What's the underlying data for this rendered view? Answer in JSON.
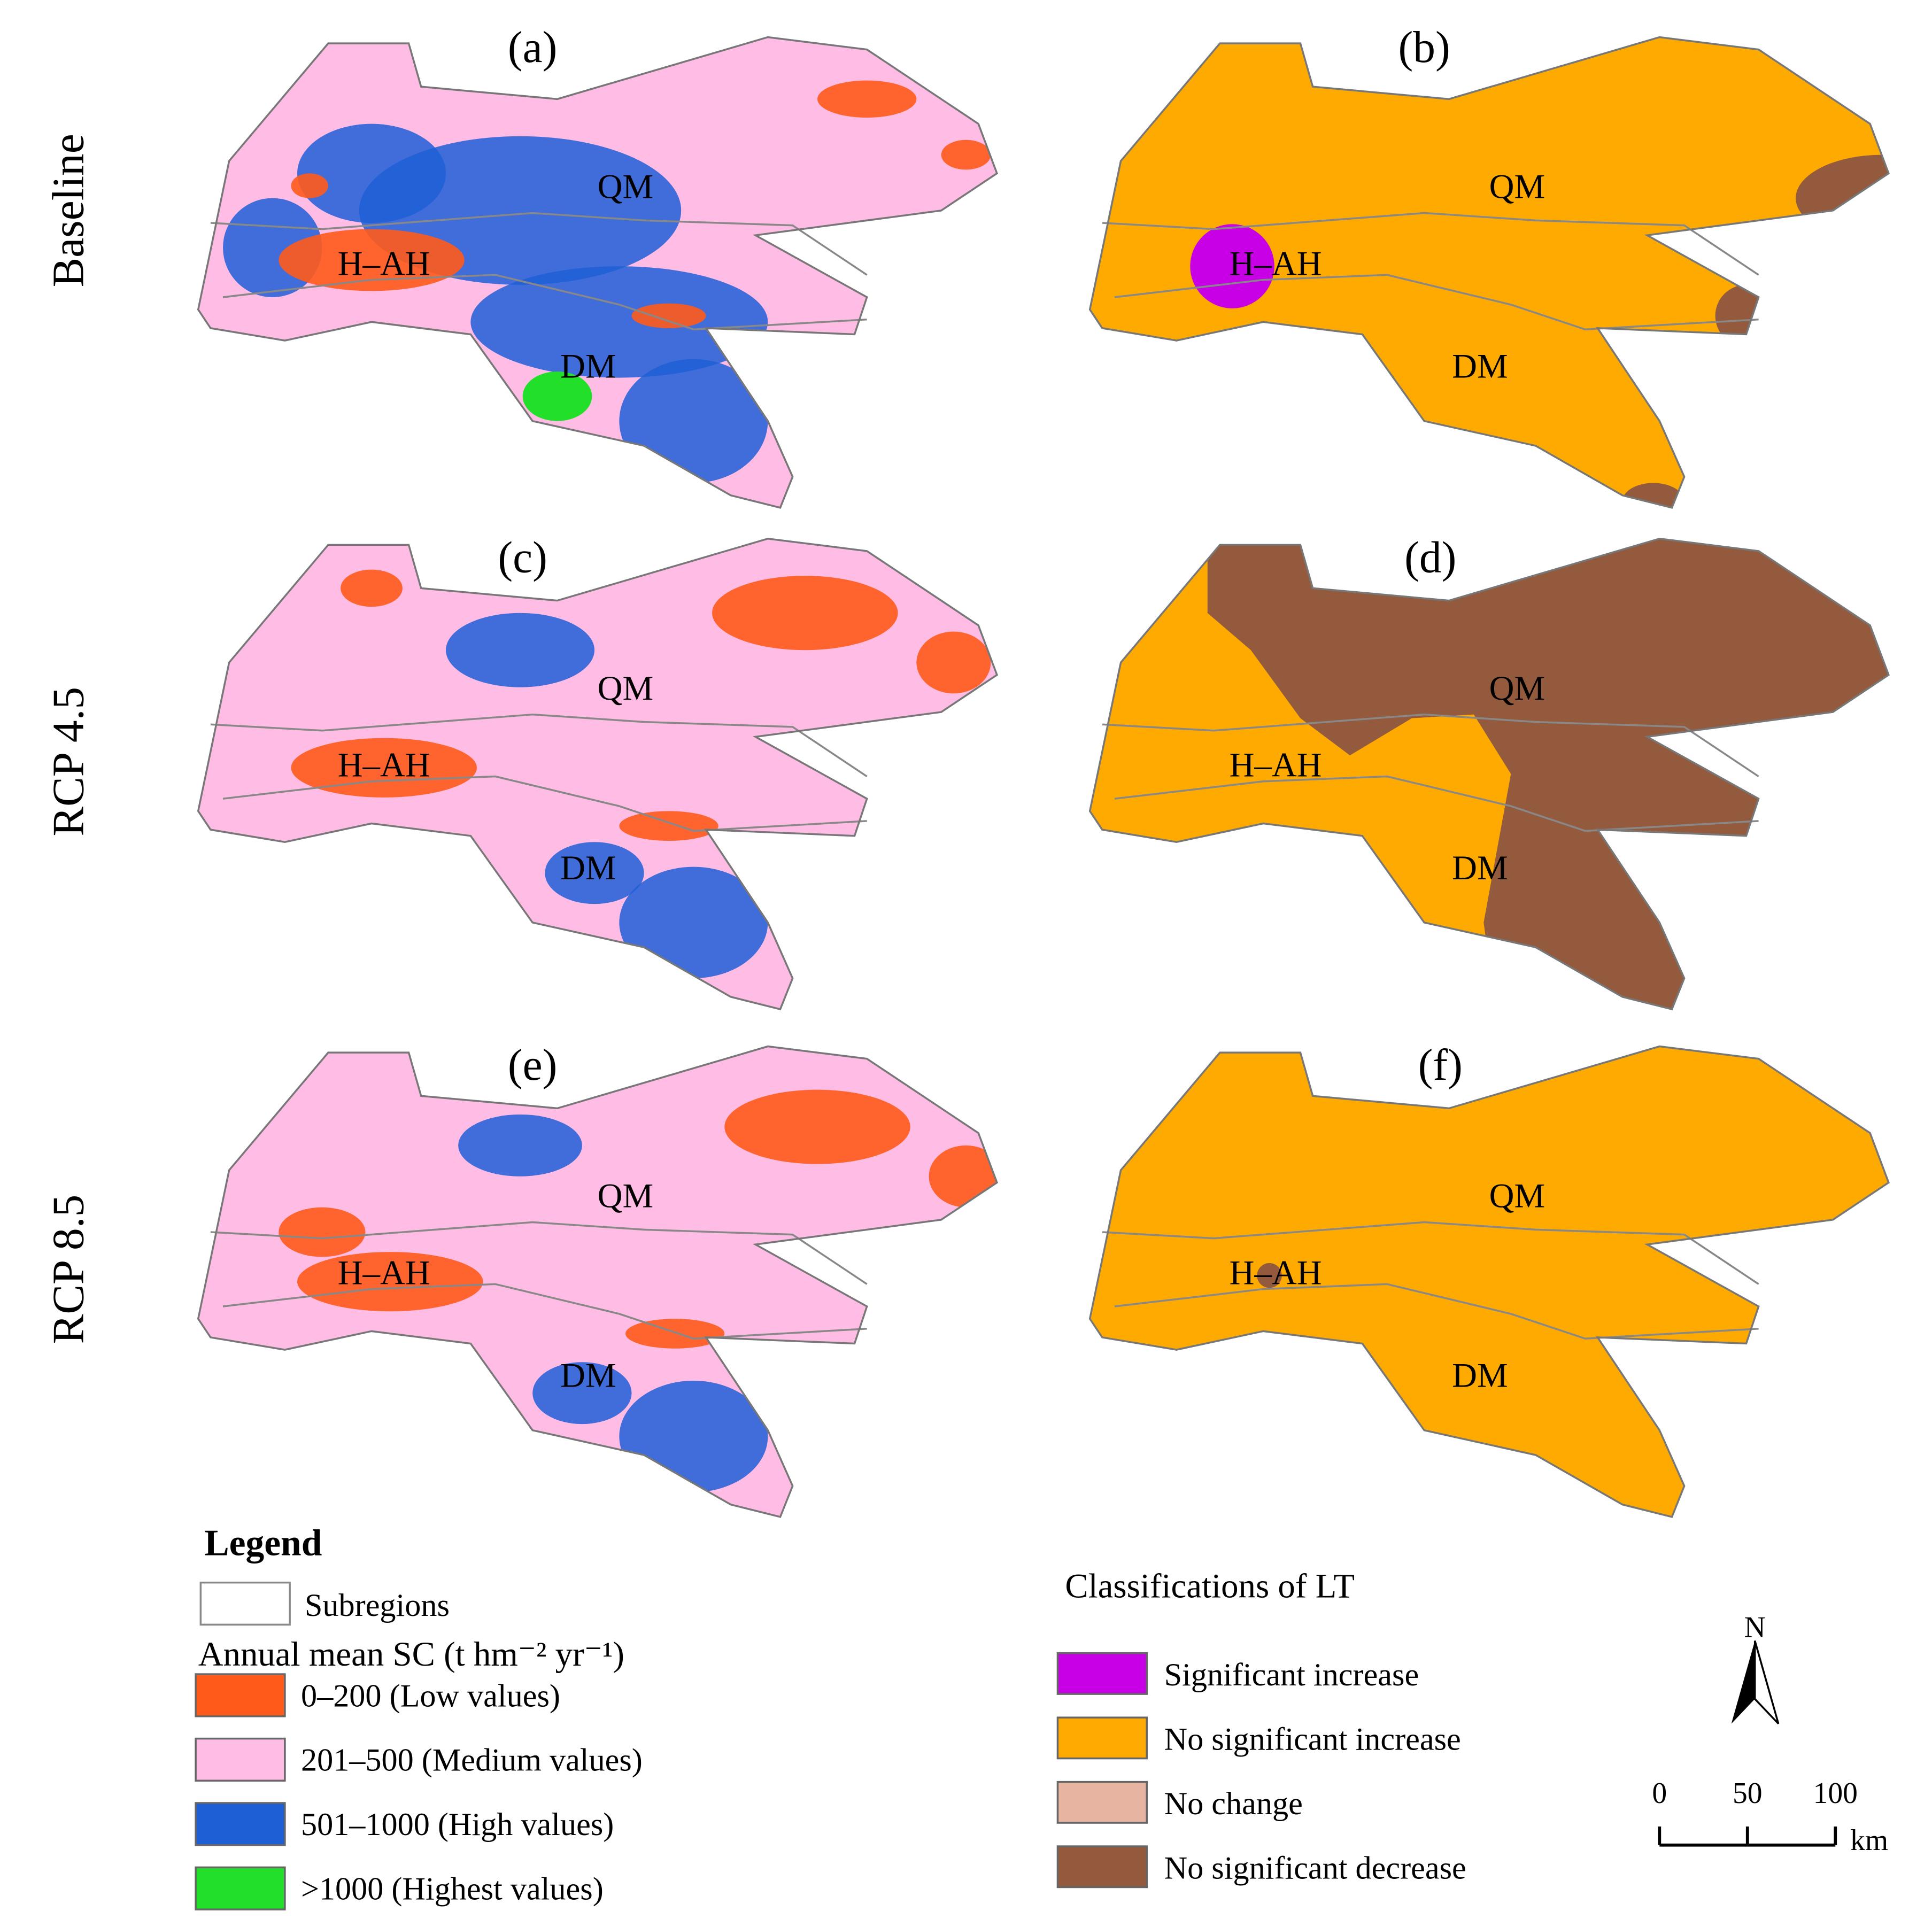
{
  "row_labels": [
    "Baseline",
    "RCP 4.5",
    "RCP 8.5"
  ],
  "panels": [
    {
      "label": "(a)",
      "regions": [
        "QM",
        "H–AH",
        "DM"
      ]
    },
    {
      "label": "(b)",
      "regions": [
        "QM",
        "H–AH",
        "DM"
      ]
    },
    {
      "label": "(c)",
      "regions": [
        "QM",
        "H–AH",
        "DM"
      ]
    },
    {
      "label": "(d)",
      "regions": [
        "QM",
        "H–AH",
        "DM"
      ]
    },
    {
      "label": "(e)",
      "regions": [
        "QM",
        "H–AH",
        "DM"
      ]
    },
    {
      "label": "(f)",
      "regions": [
        "QM",
        "H–AH",
        "DM"
      ]
    }
  ],
  "legend": {
    "title": "Legend",
    "subregions": "Subregions",
    "sc_title": "Annual mean SC (t hm⁻² yr⁻¹)",
    "sc_classes": [
      {
        "label": "0–200 (Low values)",
        "color": "#ff5a1a"
      },
      {
        "label": "201–500 (Medium values)",
        "color": "#ffbde6"
      },
      {
        "label": "501–1000 (High values)",
        "color": "#1f5fd6"
      },
      {
        "label": ">1000 (Highest values)",
        "color": "#22e02a"
      }
    ]
  },
  "lt_legend": {
    "title": "Classifications of LT",
    "classes": [
      {
        "label": "Significant increase",
        "color": "#c800e6"
      },
      {
        "label": "No significant increase",
        "color": "#ffaa00"
      },
      {
        "label": "No change",
        "color": "#e6b4a0"
      },
      {
        "label": "No significant decrease",
        "color": "#935a3e"
      }
    ]
  },
  "north": "N",
  "scale_bar": {
    "ticks": [
      "0",
      "50",
      "100"
    ],
    "unit": "km"
  }
}
